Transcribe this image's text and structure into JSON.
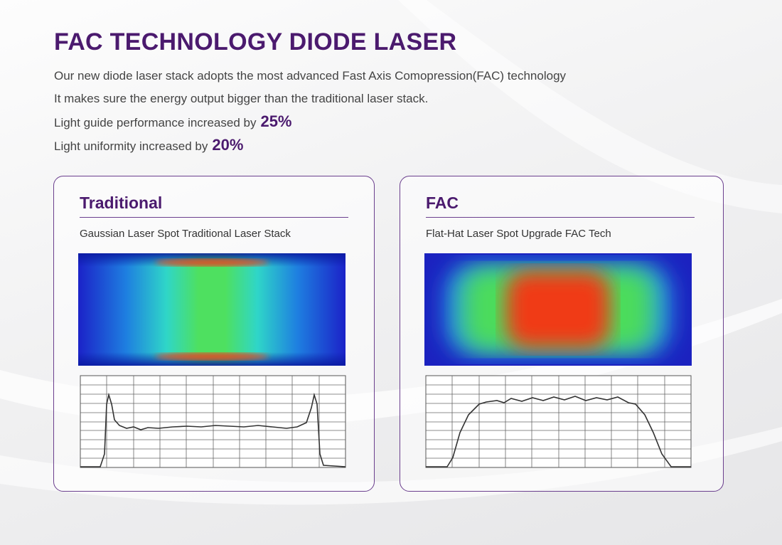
{
  "header": {
    "title": "FAC TECHNOLOGY DIODE LASER",
    "lines": [
      {
        "text": "Our new diode laser stack adopts the most advanced Fast Axis Comopression(FAC) technology"
      },
      {
        "text": "It makes sure the energy output bigger than the traditional laser stack."
      },
      {
        "text": "Light guide performance increased by",
        "highlight": "25%"
      },
      {
        "text": "Light uniformity increased by",
        "highlight": "20%"
      }
    ]
  },
  "cards": [
    {
      "title": "Traditional",
      "subtitle": "Gaussian Laser Spot Traditional Laser Stack"
    },
    {
      "title": "FAC",
      "subtitle": "Flat-Hat Laser Spot Upgrade FAC Tech"
    }
  ]
}
